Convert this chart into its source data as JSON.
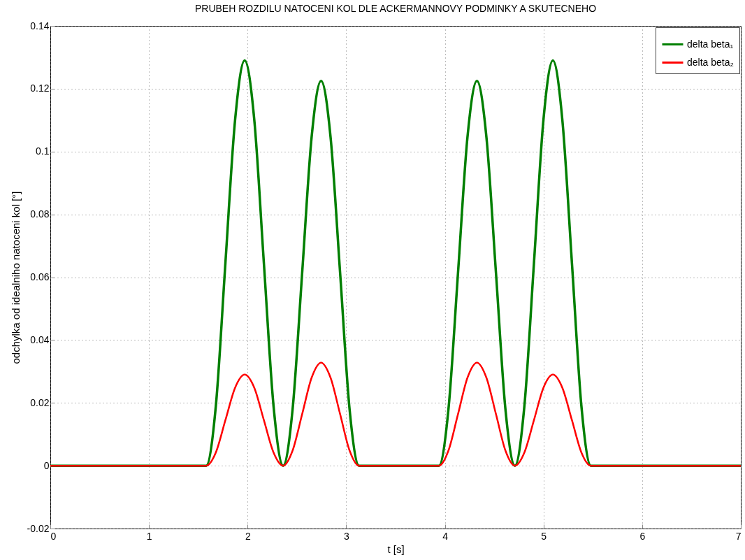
{
  "chart_data": {
    "type": "line",
    "title": "PRUBEH ROZDILU NATOCENI KOL DLE ACKERMANNOVY PODMINKY A SKUTECNEHO",
    "xlabel": "t [s]",
    "ylabel": "odchylka od idealniho natoceni kol [°]",
    "xlim": [
      0,
      7
    ],
    "xticks": [
      0,
      1,
      2,
      3,
      4,
      5,
      6,
      7
    ],
    "ylim": [
      -0.02,
      0.14
    ],
    "yticks": [
      -0.02,
      0,
      0.02,
      0.04,
      0.06,
      0.08,
      0.1,
      0.12,
      0.14
    ],
    "grid": true,
    "legend": "top right",
    "line_style": "solid",
    "marker": "none",
    "x": [
      0,
      1.58,
      1.678,
      1.775,
      1.873,
      1.97,
      2.068,
      2.165,
      2.263,
      2.36,
      2.456,
      2.553,
      2.649,
      2.745,
      2.841,
      2.938,
      3.034,
      3.13,
      3.94,
      4.036,
      4.133,
      4.229,
      4.325,
      4.421,
      4.518,
      4.614,
      4.71,
      4.806,
      4.903,
      4.999,
      5.095,
      5.191,
      5.288,
      5.384,
      5.48,
      7
    ],
    "series": [
      {
        "name": "delta beta₁",
        "color": "#007f00",
        "values": [
          0,
          0,
          0.019,
          0.0645,
          0.11,
          0.129,
          0.11,
          0.0645,
          0.019,
          0,
          0.0179,
          0.0613,
          0.1046,
          0.1225,
          0.1046,
          0.0613,
          0.0179,
          0,
          0,
          0.0179,
          0.0613,
          0.1046,
          0.1225,
          0.1046,
          0.0613,
          0.0179,
          0,
          0.019,
          0.0645,
          0.11,
          0.129,
          0.11,
          0.0645,
          0.019,
          0,
          0
        ]
      },
      {
        "name": "delta beta₂",
        "color": "#ff0000",
        "values": [
          0,
          0,
          0.0042,
          0.0145,
          0.0248,
          0.029,
          0.0248,
          0.0145,
          0.0042,
          0,
          0.0048,
          0.0164,
          0.028,
          0.0328,
          0.028,
          0.0164,
          0.0048,
          0,
          0,
          0.0048,
          0.0164,
          0.028,
          0.0328,
          0.028,
          0.0164,
          0.0048,
          0,
          0.0042,
          0.0145,
          0.0248,
          0.029,
          0.0248,
          0.0145,
          0.0042,
          0,
          0
        ]
      }
    ]
  }
}
